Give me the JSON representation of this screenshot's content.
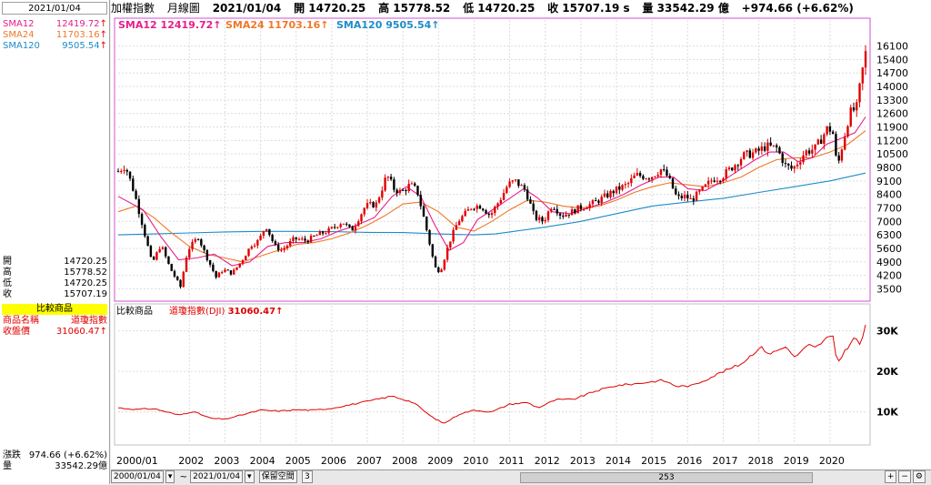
{
  "left": {
    "date": "2021/01/04",
    "sma": [
      {
        "label": "SMA12",
        "value": "12419.72",
        "arrow": "↑"
      },
      {
        "label": "SMA24",
        "value": "11703.16",
        "arrow": "↑"
      },
      {
        "label": "SMA120",
        "value": "9505.54",
        "arrow": "↑"
      }
    ],
    "ohlc": [
      {
        "label": "開",
        "value": "14720.25"
      },
      {
        "label": "高",
        "value": "15778.52"
      },
      {
        "label": "低",
        "value": "14720.25"
      },
      {
        "label": "收",
        "value": "15707.19"
      }
    ],
    "compare_header": "比較商品",
    "compare_name_label": "商品名稱",
    "compare_name": "道瓊指數",
    "compare_close_label": "收盤價",
    "compare_close": "31060.47↑",
    "change_label": "漲跌",
    "change": "974.66 (+6.62%)",
    "volume_label": "量",
    "volume": "33542.29億"
  },
  "topbar": {
    "name": "加權指數",
    "period": "月線圖",
    "date": "2021/01/04",
    "open": "開 14720.25",
    "high": "高 15778.52",
    "low": "低 14720.25",
    "close": "收 15707.19 s",
    "vol": "量 33542.29 億",
    "change": "+974.66 (+6.62%)"
  },
  "bottombar": {
    "start": "2000/01/04",
    "sep": "~",
    "end": "2021/01/04",
    "mode": "保留空間",
    "mode_value": "3",
    "count": "253"
  },
  "colors": {
    "up": "#e00000",
    "down": "#000000",
    "sma12": "#e61e8c",
    "sma24": "#f07828",
    "sma120": "#1e8cc8",
    "dji": "#e00000"
  },
  "chart_data": [
    {
      "type": "candlestick",
      "title": "加權指數 月線圖",
      "legend": [
        {
          "name": "SMA12",
          "value": "12419.72↑"
        },
        {
          "name": "SMA24",
          "value": "11703.16↑"
        },
        {
          "name": "SMA120",
          "value": "9505.54↑"
        }
      ],
      "y_ticks": [
        3500,
        4200,
        4900,
        5600,
        6300,
        7000,
        7700,
        8400,
        9100,
        9800,
        10500,
        11200,
        11900,
        12600,
        13300,
        14000,
        14700,
        15400,
        16100
      ],
      "x_ticks": [
        "2000/01",
        "2002",
        "2003",
        "2004",
        "2005",
        "2006",
        "2007",
        "2008",
        "2009",
        "2010",
        "2011",
        "2012",
        "2013",
        "2014",
        "2015",
        "2016",
        "2017",
        "2018",
        "2019",
        "2020"
      ],
      "ylim": [
        3000,
        16600
      ],
      "xlim": [
        2000.0,
        2021.05
      ],
      "anchors": [
        [
          2000.0,
          9600
        ],
        [
          2000.2,
          9900
        ],
        [
          2000.45,
          8500
        ],
        [
          2000.7,
          6700
        ],
        [
          2000.95,
          4800
        ],
        [
          2001.2,
          5800
        ],
        [
          2001.45,
          4600
        ],
        [
          2001.75,
          3600
        ],
        [
          2001.95,
          5500
        ],
        [
          2002.25,
          6200
        ],
        [
          2002.45,
          5300
        ],
        [
          2002.75,
          4100
        ],
        [
          2002.95,
          4500
        ],
        [
          2003.2,
          4300
        ],
        [
          2003.45,
          4900
        ],
        [
          2003.75,
          5800
        ],
        [
          2003.95,
          6000
        ],
        [
          2004.15,
          6800
        ],
        [
          2004.4,
          5700
        ],
        [
          2004.6,
          5500
        ],
        [
          2004.95,
          6100
        ],
        [
          2005.3,
          6000
        ],
        [
          2005.6,
          6300
        ],
        [
          2005.95,
          6550
        ],
        [
          2006.3,
          7000
        ],
        [
          2006.55,
          6500
        ],
        [
          2006.95,
          7800
        ],
        [
          2007.25,
          7900
        ],
        [
          2007.55,
          9400
        ],
        [
          2007.75,
          8700
        ],
        [
          2007.95,
          8500
        ],
        [
          2008.2,
          8900
        ],
        [
          2008.4,
          8600
        ],
        [
          2008.65,
          6700
        ],
        [
          2008.9,
          4600
        ],
        [
          2009.05,
          4400
        ],
        [
          2009.3,
          5900
        ],
        [
          2009.55,
          7000
        ],
        [
          2009.95,
          7800
        ],
        [
          2010.2,
          7800
        ],
        [
          2010.45,
          7300
        ],
        [
          2010.75,
          8200
        ],
        [
          2010.95,
          8900
        ],
        [
          2011.15,
          9100
        ],
        [
          2011.45,
          8600
        ],
        [
          2011.7,
          7200
        ],
        [
          2011.95,
          7000
        ],
        [
          2012.2,
          7900
        ],
        [
          2012.45,
          7300
        ],
        [
          2012.75,
          7500
        ],
        [
          2012.95,
          7700
        ],
        [
          2013.3,
          7900
        ],
        [
          2013.6,
          8200
        ],
        [
          2013.95,
          8600
        ],
        [
          2014.3,
          8900
        ],
        [
          2014.55,
          9400
        ],
        [
          2014.95,
          9300
        ],
        [
          2015.25,
          9700
        ],
        [
          2015.45,
          9300
        ],
        [
          2015.7,
          8200
        ],
        [
          2015.95,
          8300
        ],
        [
          2016.1,
          8100
        ],
        [
          2016.45,
          8700
        ],
        [
          2016.7,
          9200
        ],
        [
          2016.95,
          9300
        ],
        [
          2017.3,
          9900
        ],
        [
          2017.55,
          10400
        ],
        [
          2017.95,
          10600
        ],
        [
          2018.2,
          10900
        ],
        [
          2018.5,
          10800
        ],
        [
          2018.75,
          9900
        ],
        [
          2018.95,
          9700
        ],
        [
          2019.3,
          10600
        ],
        [
          2019.6,
          10800
        ],
        [
          2019.95,
          11900
        ],
        [
          2020.1,
          11500
        ],
        [
          2020.2,
          9700
        ],
        [
          2020.35,
          11000
        ],
        [
          2020.55,
          12600
        ],
        [
          2020.75,
          12900
        ],
        [
          2020.9,
          14700
        ],
        [
          2021.0,
          15707
        ]
      ],
      "sma12": [
        [
          2000.0,
          8300
        ],
        [
          2000.7,
          7600
        ],
        [
          2001.2,
          6200
        ],
        [
          2001.7,
          5000
        ],
        [
          2002.2,
          5100
        ],
        [
          2002.7,
          5300
        ],
        [
          2003.2,
          4700
        ],
        [
          2003.7,
          4900
        ],
        [
          2004.2,
          5700
        ],
        [
          2004.7,
          5900
        ],
        [
          2005.2,
          5900
        ],
        [
          2005.7,
          6100
        ],
        [
          2006.2,
          6500
        ],
        [
          2006.7,
          6800
        ],
        [
          2007.2,
          7200
        ],
        [
          2007.7,
          8300
        ],
        [
          2008.1,
          8800
        ],
        [
          2008.5,
          8300
        ],
        [
          2008.9,
          6800
        ],
        [
          2009.3,
          5500
        ],
        [
          2009.7,
          5900
        ],
        [
          2010.1,
          7100
        ],
        [
          2010.6,
          7700
        ],
        [
          2011.0,
          8200
        ],
        [
          2011.4,
          8700
        ],
        [
          2011.8,
          8200
        ],
        [
          2012.2,
          7500
        ],
        [
          2012.7,
          7400
        ],
        [
          2013.2,
          7700
        ],
        [
          2013.7,
          8000
        ],
        [
          2014.2,
          8400
        ],
        [
          2014.7,
          8900
        ],
        [
          2015.2,
          9300
        ],
        [
          2015.6,
          9300
        ],
        [
          2016.0,
          8700
        ],
        [
          2016.5,
          8600
        ],
        [
          2016.9,
          9000
        ],
        [
          2017.4,
          9600
        ],
        [
          2017.9,
          10200
        ],
        [
          2018.3,
          10600
        ],
        [
          2018.7,
          10600
        ],
        [
          2019.1,
          10100
        ],
        [
          2019.5,
          10300
        ],
        [
          2019.9,
          11000
        ],
        [
          2020.3,
          11300
        ],
        [
          2020.7,
          11600
        ],
        [
          2021.0,
          12420
        ]
      ],
      "sma24": [
        [
          2000.0,
          7500
        ],
        [
          2000.5,
          7800
        ],
        [
          2001.0,
          7200
        ],
        [
          2001.5,
          6400
        ],
        [
          2002.0,
          5700
        ],
        [
          2002.5,
          5300
        ],
        [
          2003.0,
          5100
        ],
        [
          2003.5,
          4900
        ],
        [
          2004.0,
          5200
        ],
        [
          2004.5,
          5500
        ],
        [
          2005.0,
          5800
        ],
        [
          2005.5,
          5900
        ],
        [
          2006.0,
          6100
        ],
        [
          2006.5,
          6400
        ],
        [
          2007.0,
          6800
        ],
        [
          2007.5,
          7300
        ],
        [
          2008.0,
          7900
        ],
        [
          2008.5,
          8000
        ],
        [
          2009.0,
          7500
        ],
        [
          2009.5,
          6700
        ],
        [
          2010.0,
          6500
        ],
        [
          2010.5,
          7000
        ],
        [
          2011.0,
          7600
        ],
        [
          2011.5,
          8100
        ],
        [
          2012.0,
          8000
        ],
        [
          2012.5,
          7800
        ],
        [
          2013.0,
          7700
        ],
        [
          2013.5,
          7800
        ],
        [
          2014.0,
          8100
        ],
        [
          2014.5,
          8500
        ],
        [
          2015.0,
          8800
        ],
        [
          2015.5,
          9000
        ],
        [
          2016.0,
          8900
        ],
        [
          2016.5,
          8800
        ],
        [
          2017.0,
          9000
        ],
        [
          2017.5,
          9300
        ],
        [
          2018.0,
          9800
        ],
        [
          2018.5,
          10200
        ],
        [
          2019.0,
          10300
        ],
        [
          2019.5,
          10300
        ],
        [
          2020.0,
          10600
        ],
        [
          2020.5,
          11000
        ],
        [
          2021.0,
          11703
        ]
      ],
      "sma120": [
        [
          2000.0,
          6300
        ],
        [
          2001.0,
          6350
        ],
        [
          2002.0,
          6400
        ],
        [
          2003.0,
          6450
        ],
        [
          2004.0,
          6480
        ],
        [
          2005.0,
          6480
        ],
        [
          2006.0,
          6470
        ],
        [
          2007.0,
          6430
        ],
        [
          2008.0,
          6420
        ],
        [
          2009.0,
          6350
        ],
        [
          2010.0,
          6300
        ],
        [
          2010.6,
          6350
        ],
        [
          2011.0,
          6450
        ],
        [
          2012.0,
          6700
        ],
        [
          2013.0,
          7000
        ],
        [
          2014.0,
          7400
        ],
        [
          2015.0,
          7800
        ],
        [
          2016.0,
          8000
        ],
        [
          2017.0,
          8200
        ],
        [
          2018.0,
          8500
        ],
        [
          2019.0,
          8800
        ],
        [
          2020.0,
          9100
        ],
        [
          2021.0,
          9505
        ]
      ]
    },
    {
      "type": "line",
      "title": "比較商品",
      "legend": [
        {
          "name": "道瓊指數(DJI)",
          "value": "31060.47↑"
        }
      ],
      "y_ticks": [
        10000,
        20000,
        30000
      ],
      "y_tick_labels": [
        "10K",
        "20K",
        "30K"
      ],
      "ylim": [
        2500,
        33500
      ],
      "anchors": [
        [
          2000.0,
          11000
        ],
        [
          2000.5,
          10600
        ],
        [
          2001.0,
          10800
        ],
        [
          2001.7,
          9200
        ],
        [
          2002.1,
          10100
        ],
        [
          2002.6,
          8400
        ],
        [
          2003.0,
          8200
        ],
        [
          2003.5,
          9300
        ],
        [
          2004.0,
          10400
        ],
        [
          2004.5,
          10200
        ],
        [
          2005.0,
          10500
        ],
        [
          2005.5,
          10400
        ],
        [
          2006.0,
          10900
        ],
        [
          2006.9,
          12400
        ],
        [
          2007.7,
          13900
        ],
        [
          2008.3,
          12300
        ],
        [
          2008.8,
          8800
        ],
        [
          2009.15,
          7100
        ],
        [
          2009.6,
          9500
        ],
        [
          2010.0,
          10400
        ],
        [
          2010.5,
          10000
        ],
        [
          2011.0,
          11900
        ],
        [
          2011.5,
          12300
        ],
        [
          2011.8,
          11000
        ],
        [
          2012.3,
          13000
        ],
        [
          2012.8,
          13100
        ],
        [
          2013.4,
          15100
        ],
        [
          2014.0,
          16500
        ],
        [
          2014.6,
          17000
        ],
        [
          2015.3,
          17800
        ],
        [
          2015.7,
          16300
        ],
        [
          2016.1,
          16400
        ],
        [
          2016.5,
          17900
        ],
        [
          2017.0,
          20000
        ],
        [
          2017.5,
          21800
        ],
        [
          2018.05,
          26000
        ],
        [
          2018.3,
          24300
        ],
        [
          2018.8,
          26200
        ],
        [
          2018.98,
          23300
        ],
        [
          2019.4,
          26500
        ],
        [
          2019.6,
          25800
        ],
        [
          2019.95,
          28500
        ],
        [
          2020.1,
          28300
        ],
        [
          2020.2,
          21900
        ],
        [
          2020.45,
          25400
        ],
        [
          2020.7,
          28400
        ],
        [
          2020.85,
          26500
        ],
        [
          2021.0,
          31060
        ]
      ]
    }
  ]
}
